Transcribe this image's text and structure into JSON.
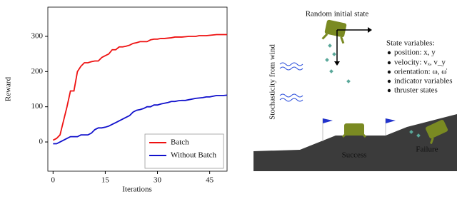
{
  "chart_data": {
    "type": "line",
    "x_label": "Iterations",
    "y_label": "Reward",
    "x": [
      0,
      1,
      2,
      3,
      4,
      5,
      6,
      7,
      8,
      9,
      10,
      11,
      12,
      13,
      14,
      15,
      16,
      17,
      18,
      19,
      20,
      21,
      22,
      23,
      24,
      25,
      26,
      27,
      28,
      29,
      30,
      31,
      32,
      33,
      34,
      35,
      36,
      37,
      38,
      39,
      40,
      41,
      42,
      43,
      44,
      45,
      46,
      47,
      48,
      49,
      50
    ],
    "series": [
      {
        "name": "Batch",
        "color": "#ee1111",
        "values": [
          5,
          10,
          20,
          60,
          100,
          145,
          145,
          200,
          215,
          225,
          225,
          228,
          230,
          230,
          240,
          245,
          250,
          262,
          262,
          270,
          270,
          272,
          275,
          280,
          282,
          285,
          285,
          285,
          290,
          292,
          292,
          294,
          294,
          295,
          296,
          298,
          298,
          298,
          299,
          300,
          300,
          300,
          302,
          302,
          302,
          303,
          304,
          305,
          305,
          305,
          305
        ]
      },
      {
        "name": "Without Batch",
        "color": "#1111cc",
        "values": [
          -5,
          -5,
          0,
          5,
          10,
          15,
          15,
          15,
          20,
          20,
          20,
          25,
          35,
          40,
          40,
          42,
          45,
          50,
          55,
          60,
          65,
          70,
          75,
          85,
          90,
          92,
          95,
          100,
          100,
          105,
          105,
          108,
          110,
          112,
          115,
          115,
          117,
          118,
          118,
          120,
          122,
          124,
          125,
          126,
          128,
          128,
          130,
          132,
          132,
          132,
          133
        ]
      }
    ],
    "xlim": [
      -1.5,
      50
    ],
    "ylim": [
      -83,
      383
    ],
    "xticks": [
      0,
      15,
      30,
      45
    ],
    "yticks": [
      0,
      100,
      200,
      300
    ],
    "grid": false,
    "legend": "lower right"
  },
  "diagram": {
    "initial_state": "Random initial state",
    "wind": "Stochasticity from wind",
    "state_title": "State variables:",
    "state_items": [
      "position: x, y",
      "velocity: vₓ, v_y",
      "orientation: ω, ω̇",
      "indicator variables",
      "thruster states"
    ],
    "success": "Success",
    "failure": "Failure"
  }
}
